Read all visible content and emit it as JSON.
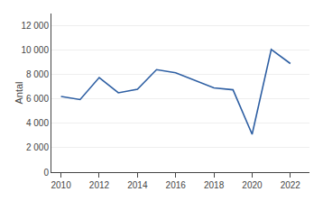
{
  "chart_data": {
    "type": "line",
    "ylabel": "Antal",
    "x": [
      2010,
      2011,
      2012,
      2013,
      2014,
      2015,
      2016,
      2017,
      2018,
      2019,
      2020,
      2021,
      2022
    ],
    "values": [
      6200,
      5950,
      7750,
      6500,
      6800,
      8400,
      8150,
      7500,
      6900,
      6750,
      3100,
      10050,
      8900
    ],
    "color": "#2E5FA3",
    "xlim": [
      2009.5,
      2023.0
    ],
    "xticks": [
      2010,
      2012,
      2014,
      2016,
      2018,
      2020,
      2022
    ],
    "ylim": [
      0,
      13000
    ],
    "yticks": [
      0,
      {
        "value": 2000,
        "label": "2 000"
      },
      {
        "value": 4000,
        "label": "4 000"
      },
      {
        "value": 6000,
        "label": "6 000"
      },
      {
        "value": 8000,
        "label": "8 000"
      },
      {
        "value": 10000,
        "label": "10 000"
      },
      {
        "value": 12000,
        "label": "12 000"
      }
    ],
    "grid": "y"
  }
}
